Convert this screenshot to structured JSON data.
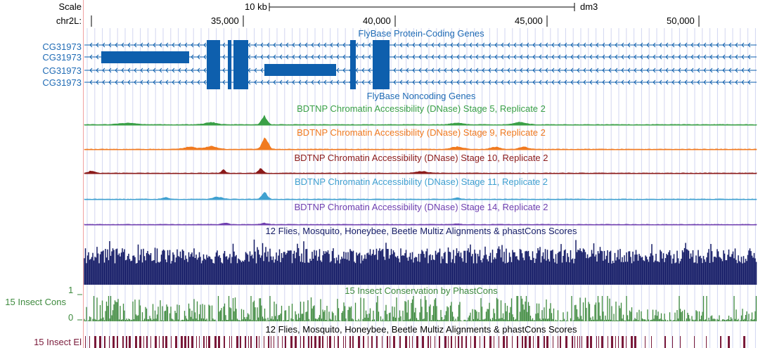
{
  "ruler": {
    "scale_label": "Scale",
    "chrom_label": "chr2L:",
    "scale_bar_text": "10 kb",
    "assembly": "dm3",
    "ticks": [
      "35,000",
      "40,000",
      "45,000",
      "50,000"
    ]
  },
  "genes": {
    "track_title": "FlyBase Protein-Coding Genes",
    "rows": [
      {
        "name": "CG31973"
      },
      {
        "name": "CG31973"
      },
      {
        "name": "CG31973"
      },
      {
        "name": "CG31973"
      }
    ],
    "noncoding_title": "FlyBase Noncoding Genes"
  },
  "dnase_tracks": [
    {
      "title": "BDTNP Chromatin Accessibility (DNase) Stage 5, Replicate 2",
      "color": "#3aa047"
    },
    {
      "title": "BDTNP Chromatin Accessibility (DNase) Stage 9, Replicate 2",
      "color": "#f07a20"
    },
    {
      "title": "BDTNP Chromatin Accessibility (DNase) Stage 10, Replicate 2",
      "color": "#8b1a1a"
    },
    {
      "title": "BDTNP Chromatin Accessibility (DNase) Stage 11, Replicate 2",
      "color": "#3fa0d0"
    },
    {
      "title": "BDTNP Chromatin Accessibility (DNase) Stage 14, Replicate 2",
      "color": "#7040b0"
    }
  ],
  "conservation": {
    "multiz_title": "12 Flies, Mosquito, Honeybee, Beetle Multiz Alignments & phastCons Scores",
    "phastcons_title": "15 Insect Conservation by PhastCons",
    "cons_label": "15 Insect Cons",
    "axis_max": "1",
    "axis_min": "0",
    "multiz_title_2": "12 Flies, Mosquito, Honeybee, Beetle Multiz Alignments & phastCons Scores",
    "elements_label": "15 Insect El"
  },
  "colors": {
    "gene": "#0e5fad",
    "gene_label": "#1f6bb5",
    "multiz": "#141b66",
    "phastcons": "#3e8a3e",
    "elements": "#7a1a3a",
    "grid": "#d2d6f0",
    "divider": "#f0a0a0"
  }
}
